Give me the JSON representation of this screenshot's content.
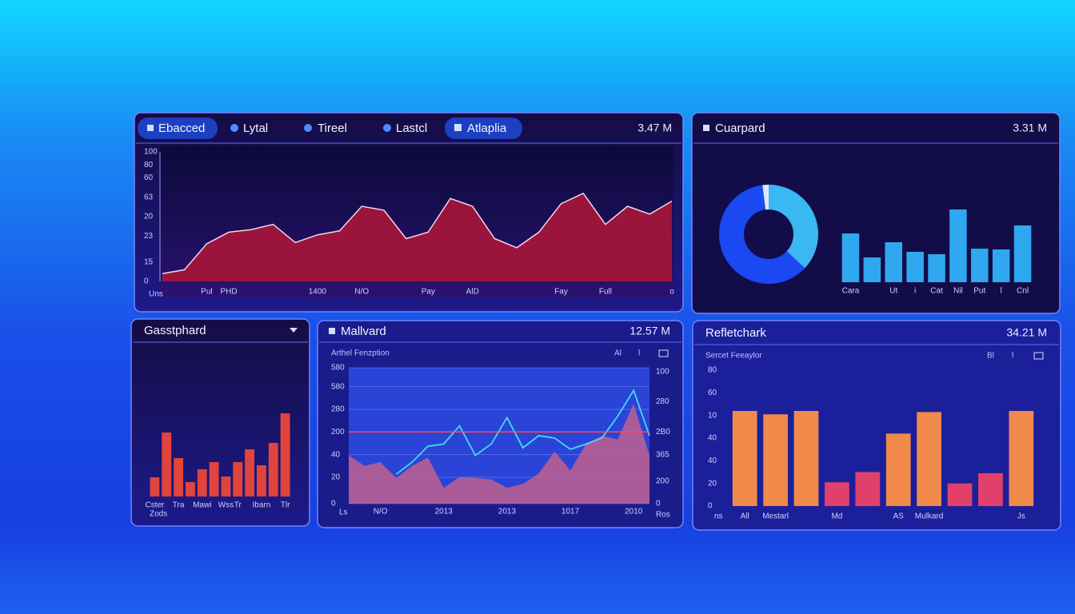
{
  "chart_data": [
    {
      "type": "area",
      "tabs": [
        "Ebacced",
        "Lytal",
        "Tireel",
        "Lastcl",
        "Atlaplia"
      ],
      "header_value": "3.47 M",
      "xlabel": "Uns",
      "categories": [
        null,
        null,
        "Pul",
        "PHD",
        null,
        null,
        null,
        "1400",
        null,
        "N/O",
        null,
        null,
        "Pay",
        null,
        "AlD",
        null,
        null,
        null,
        "Fay",
        null,
        "Full",
        null,
        null,
        "o"
      ],
      "values": [
        6,
        9,
        29,
        38,
        40,
        44,
        30,
        36,
        39,
        58,
        55,
        33,
        38,
        64,
        58,
        33,
        26,
        38,
        60,
        68,
        44,
        58,
        52,
        62
      ],
      "color": "#a8153a",
      "ylim": [
        0,
        100
      ],
      "yticks": [
        0,
        15,
        {
          "value": 35,
          "label": "23"
        },
        {
          "value": 50,
          "label": "20"
        },
        {
          "value": 65,
          "label": "63"
        },
        {
          "value": 80,
          "label": "60"
        },
        {
          "value": 90,
          "label": "80"
        },
        100
      ]
    },
    {
      "type": "donut",
      "title": "Cuarpard",
      "header_value": "3.31 M",
      "values": [
        37,
        61,
        2
      ],
      "colors": [
        "#3ab8f2",
        "#1a48f2",
        "#dfe8ff"
      ]
    },
    {
      "type": "bar",
      "categories": [
        "Cara",
        null,
        "Ut",
        "i",
        "Cat",
        "Nil",
        "Put",
        "l",
        "Cnl"
      ],
      "values": [
        61,
        31,
        50,
        38,
        35,
        91,
        42,
        41,
        71
      ],
      "color": "#2fa8f0",
      "ylim": [
        0,
        100
      ]
    },
    {
      "type": "bar",
      "title": "Gasstphard",
      "xlabel": "Zods",
      "categories": [
        "Cster",
        null,
        "Tra",
        null,
        "Mawi",
        null,
        "Wss",
        "Tr",
        null,
        "Ibarn",
        null,
        "Tlr"
      ],
      "values": [
        24,
        80,
        48,
        18,
        34,
        43,
        25,
        43,
        59,
        39,
        67,
        104
      ],
      "color": "#e0443c",
      "ylim": [
        0,
        110
      ]
    },
    {
      "type": "line",
      "title": "Mallvard",
      "header_value": "12.57 M",
      "subtitle": "Arthel Fenzption",
      "toolbar": [
        "Al",
        "l"
      ],
      "xlabel": "Ls",
      "y2label": "Ros",
      "categories": [
        null,
        null,
        "N/O",
        null,
        null,
        null,
        "2013",
        null,
        null,
        null,
        "2013",
        null,
        null,
        null,
        "1017",
        null,
        null,
        null,
        "2010",
        null
      ],
      "series": [
        {
          "type": "area",
          "color": "#c0608e",
          "values": [
            64,
            50,
            55,
            34,
            50,
            61,
            21,
            35,
            34,
            32,
            21,
            26,
            40,
            69,
            44,
            79,
            90,
            85,
            132,
            64
          ]
        },
        {
          "type": "line",
          "color": "#48d8f0",
          "values": [
            null,
            null,
            null,
            39,
            55,
            76,
            79,
            103,
            64,
            79,
            114,
            74,
            90,
            87,
            72,
            79,
            87,
            116,
            150,
            90
          ]
        }
      ],
      "hline": 95,
      "hline_color": "#ff4a5a",
      "grid": true,
      "ylim": [
        0,
        180
      ],
      "yticks": [
        0,
        {
          "value": 35,
          "label": "20"
        },
        {
          "value": 65,
          "label": "40"
        },
        {
          "value": 95,
          "label": "200"
        },
        {
          "value": 125,
          "label": "280"
        },
        {
          "value": 155,
          "label": "580"
        },
        {
          "value": 180,
          "label": "580"
        }
      ],
      "y2lim": [
        0,
        180
      ],
      "y2ticks": [
        0,
        {
          "value": 30,
          "label": "200"
        },
        {
          "value": 65,
          "label": "365"
        },
        {
          "value": 95,
          "label": "2B0"
        },
        {
          "value": 135,
          "label": "280"
        },
        {
          "value": 175,
          "label": "100"
        }
      ]
    },
    {
      "type": "bar",
      "title": "Refletchark",
      "header_value": "34.21 M",
      "subtitle": "Sercet Feeaylor",
      "toolbar": [
        "Bl",
        "l"
      ],
      "xlabel": "ns",
      "categories": [
        "All",
        "Mestarl",
        null,
        "Md",
        null,
        "AS",
        "Mulkard",
        null,
        null,
        "Js"
      ],
      "values": [
        84,
        81,
        84,
        21,
        30,
        64,
        83,
        20,
        29,
        84
      ],
      "colors": [
        "#f0894a",
        "#f0894a",
        "#f0894a",
        "#e0406a",
        "#e0406a",
        "#f0894a",
        "#f0894a",
        "#e0406a",
        "#e0406a",
        "#f0894a"
      ],
      "ylim": [
        0,
        120
      ],
      "yticks": [
        0,
        20,
        40,
        {
          "value": 60,
          "label": "40"
        },
        {
          "value": 80,
          "label": "10"
        },
        {
          "value": 100,
          "label": "60"
        },
        {
          "value": 120,
          "label": "80"
        }
      ]
    }
  ]
}
